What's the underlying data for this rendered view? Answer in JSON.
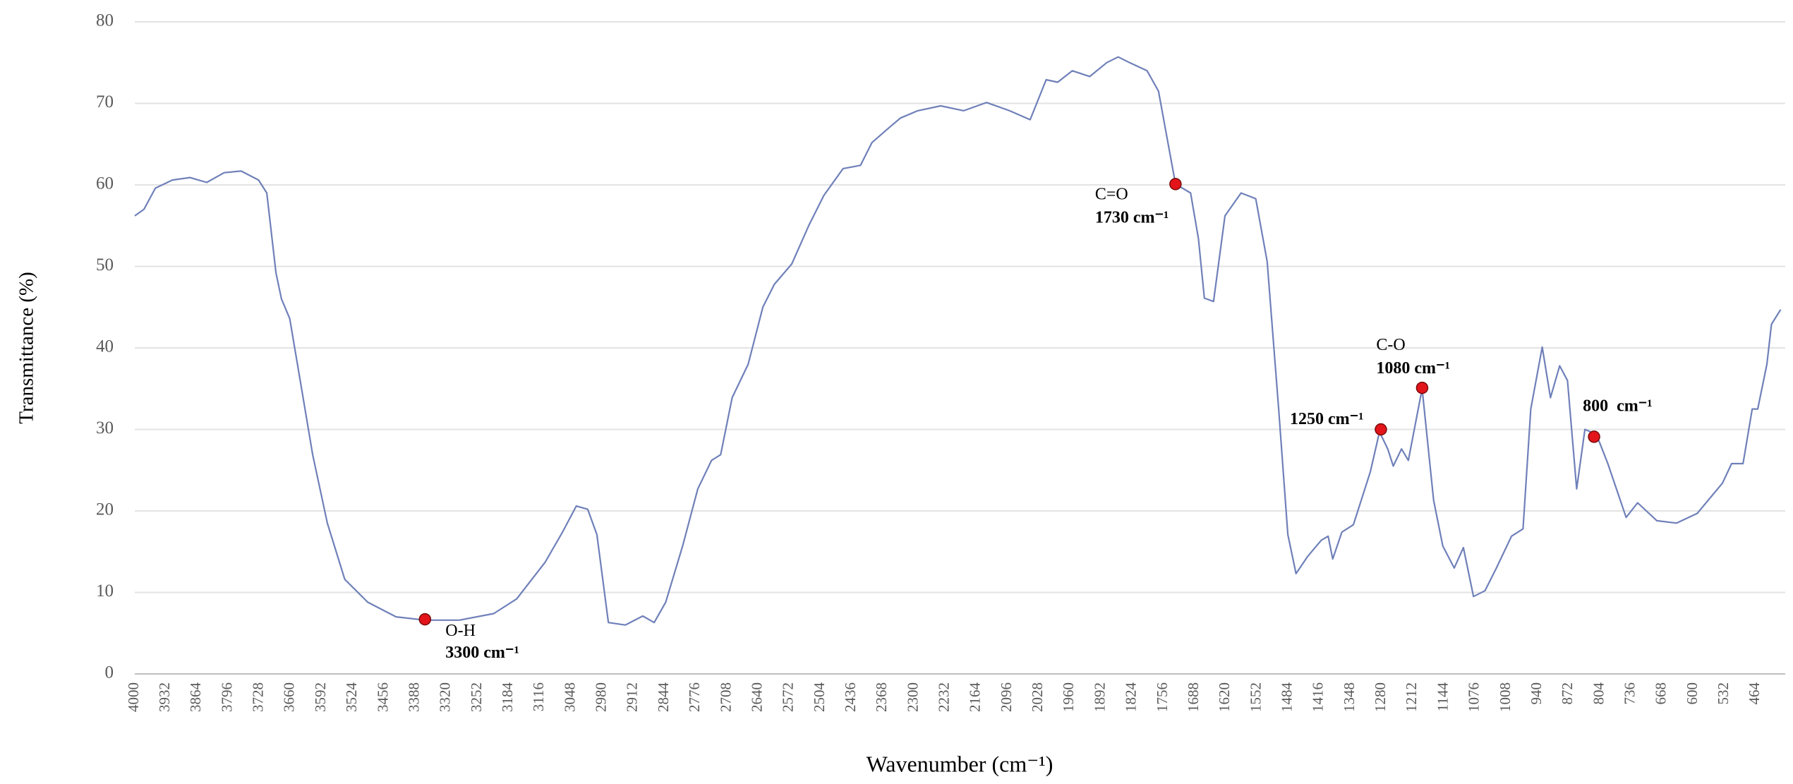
{
  "chart_data": {
    "type": "line",
    "x_label": "Wavenumber (cm⁻¹)",
    "y_label": "Transmittance (%)",
    "color": "#6f80b9",
    "x": [
      4000,
      3980,
      3955,
      3918,
      3880,
      3843,
      3805,
      3768,
      3730,
      3712,
      3692,
      3680,
      3662,
      3637,
      3612,
      3580,
      3542,
      3492,
      3430,
      3367,
      3292,
      3217,
      3167,
      3105,
      3067,
      3037,
      3012,
      2992,
      2967,
      2930,
      2892,
      2867,
      2842,
      2805,
      2772,
      2742,
      2722,
      2697,
      2662,
      2630,
      2605,
      2567,
      2530,
      2497,
      2455,
      2417,
      2392,
      2355,
      2330,
      2292,
      2242,
      2192,
      2142,
      2092,
      2047,
      2012,
      1987,
      1955,
      1917,
      1880,
      1855,
      1830,
      1792,
      1767,
      1730,
      1697,
      1680,
      1667,
      1647,
      1622,
      1587,
      1555,
      1530,
      1505,
      1485,
      1467,
      1442,
      1412,
      1397,
      1387,
      1367,
      1342,
      1305,
      1285,
      1267,
      1255,
      1237,
      1222,
      1192,
      1167,
      1147,
      1122,
      1102,
      1080,
      1055,
      1030,
      997,
      972,
      955,
      930,
      912,
      892,
      875,
      855,
      837,
      812,
      787,
      747,
      722,
      680,
      637,
      592,
      537,
      517,
      492,
      472,
      460,
      440,
      430,
      410
    ],
    "values": [
      56.2,
      57,
      59.6,
      60.6,
      60.9,
      60.3,
      61.5,
      61.7,
      60.6,
      59,
      49.2,
      46,
      43.6,
      35.3,
      26.9,
      18.5,
      11.6,
      8.8,
      7,
      6.6,
      6.6,
      7.4,
      9.2,
      13.7,
      17.4,
      20.6,
      20.2,
      17.1,
      6.3,
      6,
      7.1,
      6.3,
      8.8,
      15.7,
      22.7,
      26.2,
      26.9,
      33.9,
      38,
      45,
      47.8,
      50.3,
      55,
      58.7,
      62,
      62.4,
      65.2,
      67,
      68.2,
      69.1,
      69.7,
      69.1,
      70.1,
      69.1,
      68,
      72.9,
      72.6,
      74,
      73.3,
      75,
      75.7,
      75,
      74,
      71.5,
      60.1,
      59,
      53.4,
      46.1,
      45.7,
      56.2,
      59,
      58.3,
      50.6,
      32.5,
      17.1,
      12.3,
      14.4,
      16.4,
      16.9,
      14.1,
      17.4,
      18.3,
      24.8,
      29.7,
      27.6,
      25.5,
      27.6,
      26.2,
      35,
      21.3,
      15.7,
      13,
      15.5,
      9.5,
      10.2,
      13,
      16.9,
      17.8,
      32.5,
      40.1,
      33.9,
      37.8,
      36,
      22.7,
      30,
      29.4,
      25.8,
      19.2,
      21,
      18.8,
      18.5,
      19.7,
      23.4,
      25.8,
      25.8,
      32.5,
      32.5,
      38,
      42.9,
      44.7
    ],
    "xlim": [
      4000,
      400
    ],
    "ylim": [
      0,
      80
    ],
    "xticks": [
      4000,
      3932,
      3864,
      3796,
      3728,
      3660,
      3592,
      3524,
      3456,
      3388,
      3320,
      3252,
      3184,
      3116,
      3048,
      2980,
      2912,
      2844,
      2776,
      2708,
      2640,
      2572,
      2504,
      2436,
      2368,
      2300,
      2232,
      2164,
      2096,
      2028,
      1960,
      1892,
      1824,
      1756,
      1688,
      1620,
      1552,
      1484,
      1416,
      1348,
      1280,
      1212,
      1144,
      1076,
      1008,
      940,
      872,
      804,
      736,
      668,
      600,
      532,
      464
    ],
    "yticks": [
      0,
      10,
      20,
      30,
      40,
      50,
      60,
      70,
      80
    ],
    "grid": true,
    "markers": {
      "color": "#e3151b",
      "x": [
        3367,
        1730,
        1282,
        1192,
        817
      ],
      "y": [
        6.7,
        60.1,
        30,
        35.1,
        29.1
      ]
    },
    "annotations": [
      {
        "label": "O-H",
        "value": "3300 cm⁻¹"
      },
      {
        "label": "C=O",
        "value": "1730 cm⁻¹"
      },
      {
        "value": "1250 cm⁻¹"
      },
      {
        "label": "C-O",
        "value": "1080 cm⁻¹"
      },
      {
        "value": "800  cm⁻¹"
      }
    ]
  }
}
